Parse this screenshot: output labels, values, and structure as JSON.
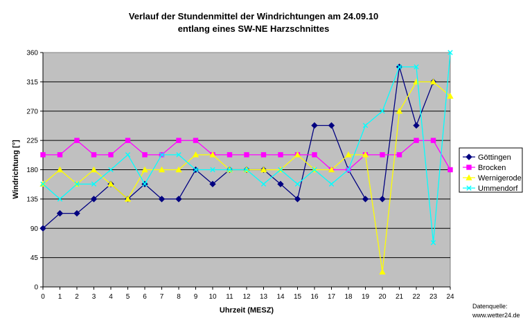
{
  "chart_data": {
    "type": "line",
    "title_line1": "Verlauf der Stundenmittel der Windrichtungen am 24.09.10",
    "title_line2": "entlang eines SW-NE Harzschnittes",
    "xlabel": "Uhrzeit (MESZ)",
    "ylabel": "Windrichtung [°]",
    "ylim": [
      0,
      360
    ],
    "yticks": [
      0,
      45,
      90,
      135,
      180,
      225,
      270,
      315,
      360
    ],
    "x": [
      0,
      1,
      2,
      3,
      4,
      5,
      6,
      7,
      8,
      9,
      10,
      11,
      12,
      13,
      14,
      15,
      16,
      17,
      18,
      19,
      20,
      21,
      22,
      23,
      24
    ],
    "grid": "horizontal",
    "plot_background": "#c0c0c0",
    "legend_position": "right",
    "series": [
      {
        "name": "Göttingen",
        "color": "#000080",
        "marker": "diamond",
        "values": [
          90,
          113,
          113,
          135,
          158,
          135,
          158,
          135,
          135,
          180,
          158,
          180,
          180,
          180,
          158,
          135,
          248,
          248,
          180,
          135,
          135,
          338,
          248,
          315,
          null
        ]
      },
      {
        "name": "Brocken",
        "color": "#ff00ff",
        "marker": "square",
        "values": [
          203,
          203,
          225,
          203,
          203,
          225,
          203,
          203,
          225,
          225,
          203,
          203,
          203,
          203,
          203,
          203,
          203,
          180,
          180,
          203,
          203,
          203,
          225,
          225,
          180
        ]
      },
      {
        "name": "Wernigerode",
        "color": "#ffff00",
        "marker": "triangle",
        "values": [
          158,
          180,
          158,
          180,
          158,
          135,
          180,
          180,
          180,
          203,
          203,
          180,
          180,
          180,
          180,
          203,
          180,
          180,
          203,
          203,
          23,
          270,
          315,
          315,
          293
        ]
      },
      {
        "name": "Ummendorf",
        "color": "#00ffff",
        "marker": "x",
        "values": [
          158,
          135,
          158,
          158,
          180,
          203,
          158,
          203,
          203,
          180,
          180,
          180,
          180,
          158,
          180,
          158,
          180,
          158,
          180,
          248,
          270,
          338,
          338,
          68,
          360
        ]
      }
    ]
  },
  "source_line1": "Datenquelle:",
  "source_line2": "www.wetter24.de"
}
